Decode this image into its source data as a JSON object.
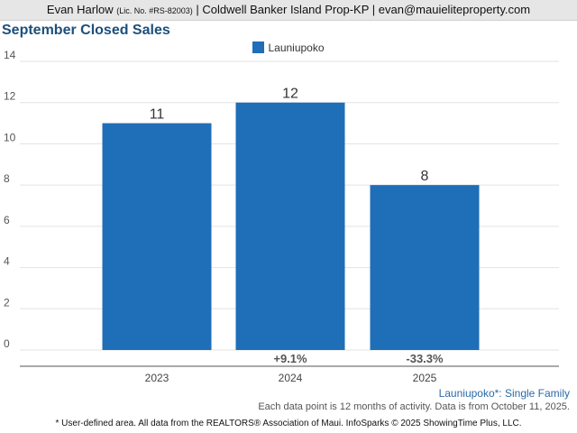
{
  "header": {
    "agent_name": "Evan Harlow",
    "license": "(Lic. No. #RS-82003)",
    "company": "| Coldwell Banker Island Prop-KP |",
    "email": "evan@mauieliteproperty.com"
  },
  "chart_data": {
    "type": "bar",
    "title": "September Closed Sales",
    "categories": [
      "2023",
      "2024",
      "2025"
    ],
    "series": [
      {
        "name": "Launiupoko",
        "values": [
          11,
          12,
          8
        ]
      }
    ],
    "change_labels": [
      "",
      "+9.1%",
      "-33.3%"
    ],
    "ylim": [
      0,
      14
    ],
    "yticks": [
      0,
      2,
      4,
      6,
      8,
      10,
      12,
      14
    ],
    "grid": true,
    "legend_position": "top-center",
    "xlabel": "",
    "ylabel": ""
  },
  "colors": {
    "bar": "#1f6eb8",
    "title": "#1c4f7c",
    "grid": "#e3e3e3",
    "filter_note": "#2b6aa8"
  },
  "footer": {
    "filter_note": "Launiupoko*: Single Family",
    "activity_note": "Each data point is 12 months of activity. Data is from October 11, 2025.",
    "source_note": "* User-defined area. All data from the REALTORS® Association of Maui. InfoSparks © 2025 ShowingTime Plus, LLC."
  }
}
